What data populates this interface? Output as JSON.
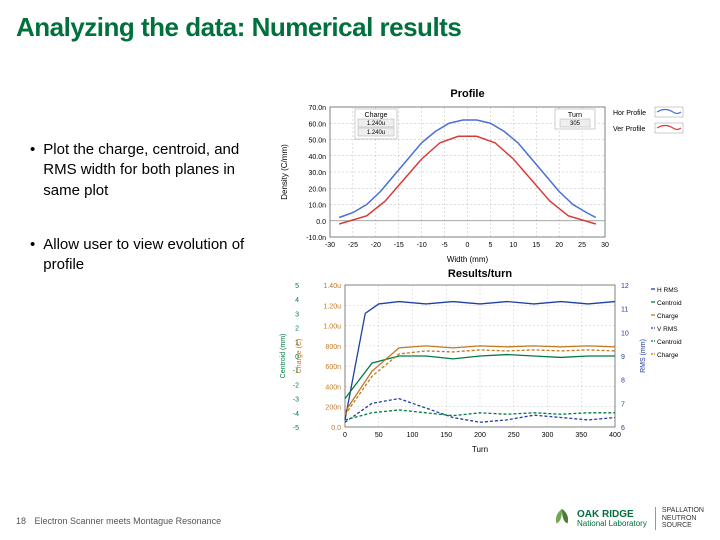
{
  "slide": {
    "title": "Analyzing the data: Numerical results",
    "bullets": [
      "Plot the charge, centroid, and RMS width for both planes in same plot",
      "Allow user to view evolution of profile"
    ],
    "footer_page": "18",
    "footer_text": "Electron Scanner meets Montague Resonance"
  },
  "logo": {
    "main": "OAK RIDGE",
    "sub": "National Laboratory",
    "sns_l1": "SPALLATION",
    "sns_l2": "NEUTRON",
    "sns_l3": "SOURCE",
    "leaf_color": "#6fa84f"
  },
  "profile_chart": {
    "title": "Profile",
    "xlabel": "Width (mm)",
    "ylabel": "Density (C/mm)",
    "x_ticks": [
      -30,
      -25,
      -20,
      -15,
      -10,
      -5,
      0,
      5,
      10,
      15,
      20,
      25,
      30
    ],
    "y_ticks_raw": [
      "-10.0n",
      "0.0",
      "10.0n",
      "20.0n",
      "30.0n",
      "40.0n",
      "50.0n",
      "60.0n",
      "70.0n"
    ],
    "y_min": -10,
    "y_max": 70,
    "charge_box": {
      "label": "Charge",
      "v1": "1.240u",
      "v2": "1.240u"
    },
    "turn_box": {
      "label": "Turn",
      "v": "305"
    },
    "legend": [
      {
        "label": "Hor Profile",
        "color": "#4a6fd8"
      },
      {
        "label": "Ver Profile",
        "color": "#d83a3a"
      }
    ],
    "hor_profile": {
      "color": "#4a6fd8",
      "points": [
        [
          -28,
          2
        ],
        [
          -25,
          5
        ],
        [
          -22,
          10
        ],
        [
          -19,
          18
        ],
        [
          -16,
          28
        ],
        [
          -13,
          38
        ],
        [
          -10,
          48
        ],
        [
          -7,
          55
        ],
        [
          -4,
          60
        ],
        [
          -1,
          62
        ],
        [
          2,
          62
        ],
        [
          5,
          60
        ],
        [
          8,
          55
        ],
        [
          11,
          48
        ],
        [
          14,
          38
        ],
        [
          17,
          28
        ],
        [
          20,
          18
        ],
        [
          23,
          10
        ],
        [
          26,
          5
        ],
        [
          28,
          2
        ]
      ]
    },
    "ver_profile": {
      "color": "#d83a3a",
      "points": [
        [
          -28,
          -2
        ],
        [
          -22,
          3
        ],
        [
          -18,
          12
        ],
        [
          -14,
          25
        ],
        [
          -10,
          38
        ],
        [
          -6,
          48
        ],
        [
          -2,
          52
        ],
        [
          2,
          52
        ],
        [
          6,
          48
        ],
        [
          10,
          38
        ],
        [
          14,
          25
        ],
        [
          18,
          12
        ],
        [
          22,
          3
        ],
        [
          28,
          -2
        ]
      ]
    },
    "grid_color": "#bbbbbb",
    "bg": "#ffffff"
  },
  "results_chart": {
    "title": "Results/turn",
    "xlabel": "Turn",
    "x_ticks": [
      0,
      50,
      100,
      150,
      200,
      250,
      300,
      350,
      400
    ],
    "left1_label": "Centroid (mm)",
    "left1_ticks": [
      -5,
      -4,
      -3,
      -2,
      -1,
      0,
      1,
      2,
      3,
      4,
      5
    ],
    "left1_color": "#007c3e",
    "left2_label": "Charge (C)",
    "left2_ticks_raw": [
      "0.0",
      "200n",
      "400n",
      "600n",
      "800n",
      "1.00u",
      "1.20u",
      "1.40u"
    ],
    "left2_color": "#c07820",
    "right_label": "RMS (mm)",
    "right_ticks": [
      6,
      7,
      8,
      9,
      10,
      11,
      12
    ],
    "right_color": "#2040a0",
    "legend": [
      {
        "label": "H RMS",
        "color": "#2040a0",
        "dash": false
      },
      {
        "label": "Centroid",
        "color": "#007c3e",
        "dash": false
      },
      {
        "label": "Charge",
        "color": "#c07820",
        "dash": false
      },
      {
        "label": "V RMS",
        "color": "#2040a0",
        "dash": true
      },
      {
        "label": "Centroid",
        "color": "#007c3e",
        "dash": true
      },
      {
        "label": "Charge",
        "color": "#c07820",
        "dash": true
      }
    ],
    "series": {
      "hrms": {
        "color": "#2040a0",
        "dash": false,
        "axis": "right",
        "pts": [
          [
            0,
            6.3
          ],
          [
            30,
            10.8
          ],
          [
            50,
            11.2
          ],
          [
            80,
            11.3
          ],
          [
            120,
            11.2
          ],
          [
            160,
            11.3
          ],
          [
            200,
            11.2
          ],
          [
            240,
            11.3
          ],
          [
            280,
            11.2
          ],
          [
            320,
            11.3
          ],
          [
            360,
            11.2
          ],
          [
            400,
            11.3
          ]
        ]
      },
      "vrms": {
        "color": "#2040a0",
        "dash": true,
        "axis": "right",
        "pts": [
          [
            0,
            6.2
          ],
          [
            40,
            7.0
          ],
          [
            80,
            7.2
          ],
          [
            120,
            6.8
          ],
          [
            160,
            6.4
          ],
          [
            200,
            6.2
          ],
          [
            240,
            6.3
          ],
          [
            280,
            6.5
          ],
          [
            320,
            6.4
          ],
          [
            360,
            6.3
          ],
          [
            400,
            6.4
          ]
        ]
      },
      "hcen": {
        "color": "#007c3e",
        "dash": false,
        "axis": "left1",
        "pts": [
          [
            0,
            -3
          ],
          [
            40,
            -0.5
          ],
          [
            80,
            0
          ],
          [
            120,
            0
          ],
          [
            160,
            -0.2
          ],
          [
            200,
            0
          ],
          [
            240,
            0.1
          ],
          [
            280,
            0
          ],
          [
            320,
            -0.1
          ],
          [
            360,
            0
          ],
          [
            400,
            0
          ]
        ]
      },
      "vcen": {
        "color": "#007c3e",
        "dash": true,
        "axis": "left1",
        "pts": [
          [
            0,
            -4.5
          ],
          [
            40,
            -4
          ],
          [
            80,
            -3.8
          ],
          [
            120,
            -4
          ],
          [
            160,
            -4.2
          ],
          [
            200,
            -4
          ],
          [
            240,
            -4.1
          ],
          [
            280,
            -4
          ],
          [
            320,
            -4.1
          ],
          [
            360,
            -4
          ],
          [
            400,
            -4
          ]
        ]
      },
      "hchg": {
        "color": "#c07820",
        "dash": false,
        "axis": "left2",
        "pts": [
          [
            0,
            0.15
          ],
          [
            40,
            0.55
          ],
          [
            80,
            0.78
          ],
          [
            120,
            0.8
          ],
          [
            160,
            0.78
          ],
          [
            200,
            0.8
          ],
          [
            240,
            0.79
          ],
          [
            280,
            0.8
          ],
          [
            320,
            0.79
          ],
          [
            360,
            0.8
          ],
          [
            400,
            0.79
          ]
        ]
      },
      "vchg": {
        "color": "#c07820",
        "dash": true,
        "axis": "left2",
        "pts": [
          [
            0,
            0.12
          ],
          [
            40,
            0.5
          ],
          [
            80,
            0.72
          ],
          [
            120,
            0.75
          ],
          [
            160,
            0.74
          ],
          [
            200,
            0.76
          ],
          [
            240,
            0.75
          ],
          [
            280,
            0.76
          ],
          [
            320,
            0.75
          ],
          [
            360,
            0.76
          ],
          [
            400,
            0.75
          ]
        ]
      }
    },
    "grid_color": "#cccccc",
    "bg": "#ffffff"
  }
}
